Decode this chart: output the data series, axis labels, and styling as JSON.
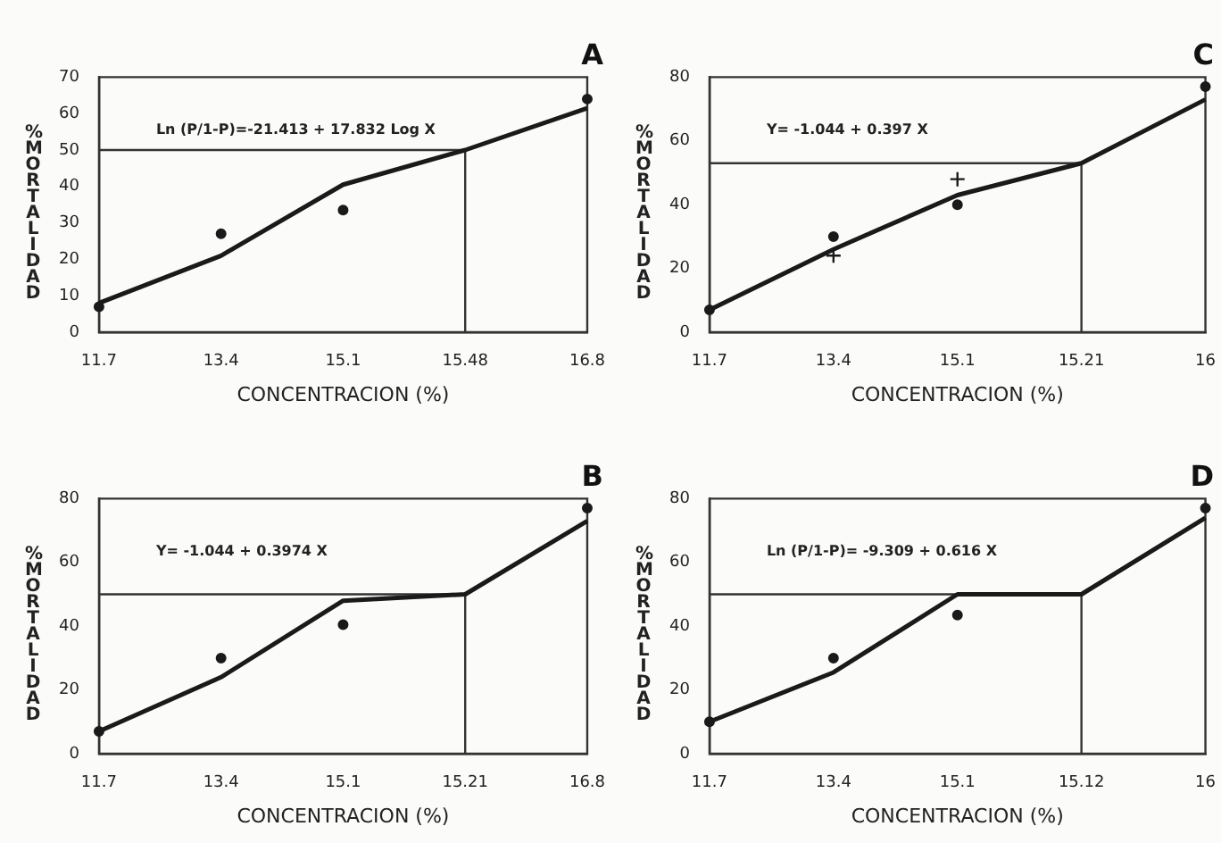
{
  "chart_data": [
    {
      "type": "line",
      "title": "A",
      "xlabel": "CONCENTRACION (%)",
      "ylabel": "% MORTALIDAD",
      "categories": [
        "11.7",
        "13.4",
        "15.1",
        "15.48",
        "16.8"
      ],
      "ylim": [
        0,
        70
      ],
      "yticks": [
        0,
        10,
        20,
        30,
        40,
        50,
        60,
        70
      ],
      "grid": false,
      "legend": false,
      "annotations": [
        "Ln (P/1-P)=-21.413 + 17.832 Log X"
      ],
      "ref_lines": [
        {
          "axis": "y",
          "value": 50
        },
        {
          "axis": "x",
          "value": "15.48"
        }
      ],
      "series": [
        {
          "type": "line",
          "color": "#1a1a1a",
          "marker": "none",
          "values": [
            8,
            21,
            40.5,
            50,
            61.5
          ]
        },
        {
          "type": "scatter",
          "color": "#1a1a1a",
          "marker": "circle",
          "values": [
            7,
            27,
            33.5,
            null,
            64
          ]
        }
      ]
    },
    {
      "type": "line",
      "title": "C",
      "xlabel": "CONCENTRACION (%)",
      "ylabel": "% MORTALIDAD",
      "categories": [
        "11.7",
        "13.4",
        "15.1",
        "15.21",
        "16"
      ],
      "ylim": [
        0,
        80
      ],
      "yticks": [
        0,
        20,
        40,
        60,
        80
      ],
      "grid": false,
      "legend": false,
      "annotations": [
        "Y= -1.044 + 0.397 X"
      ],
      "ref_lines": [
        {
          "axis": "y",
          "value": 53
        },
        {
          "axis": "x",
          "value": "15.21"
        }
      ],
      "series": [
        {
          "type": "line",
          "color": "#1a1a1a",
          "marker": "none",
          "values": [
            7,
            26,
            43,
            53,
            73
          ]
        },
        {
          "type": "scatter",
          "color": "#1a1a1a",
          "marker": "circle",
          "values": [
            7,
            30,
            40,
            null,
            77
          ]
        },
        {
          "type": "scatter",
          "color": "#1a1a1a",
          "marker": "cross",
          "values": [
            null,
            24,
            48,
            null,
            null
          ]
        }
      ]
    },
    {
      "type": "line",
      "title": "B",
      "xlabel": "CONCENTRACION (%)",
      "ylabel": "% MORTALIDAD",
      "categories": [
        "11.7",
        "13.4",
        "15.1",
        "15.21",
        "16.8"
      ],
      "ylim": [
        0,
        80
      ],
      "yticks": [
        0,
        20,
        40,
        60,
        80
      ],
      "grid": false,
      "legend": false,
      "annotations": [
        "Y= -1.044 + 0.3974 X"
      ],
      "ref_lines": [
        {
          "axis": "y",
          "value": 50
        },
        {
          "axis": "x",
          "value": "15.21"
        }
      ],
      "series": [
        {
          "type": "line",
          "color": "#1a1a1a",
          "marker": "none",
          "values": [
            7,
            24,
            48,
            50,
            73
          ]
        },
        {
          "type": "scatter",
          "color": "#1a1a1a",
          "marker": "circle",
          "values": [
            7,
            30,
            40.5,
            null,
            77
          ]
        }
      ]
    },
    {
      "type": "line",
      "title": "D",
      "xlabel": "CONCENTRACION (%)",
      "ylabel": "% MORTALIDAD",
      "categories": [
        "11.7",
        "13.4",
        "15.1",
        "15.12",
        "16"
      ],
      "ylim": [
        0,
        80
      ],
      "yticks": [
        0,
        20,
        40,
        60,
        80
      ],
      "grid": false,
      "legend": false,
      "annotations": [
        "Ln (P/1-P)= -9.309 + 0.616 X"
      ],
      "ref_lines": [
        {
          "axis": "y",
          "value": 50
        },
        {
          "axis": "x",
          "value": "15.12"
        }
      ],
      "series": [
        {
          "type": "line",
          "color": "#1a1a1a",
          "marker": "none",
          "values": [
            10,
            25.5,
            50,
            50,
            74
          ]
        },
        {
          "type": "scatter",
          "color": "#1a1a1a",
          "marker": "circle",
          "values": [
            10,
            30,
            43.5,
            null,
            77
          ]
        }
      ]
    }
  ]
}
